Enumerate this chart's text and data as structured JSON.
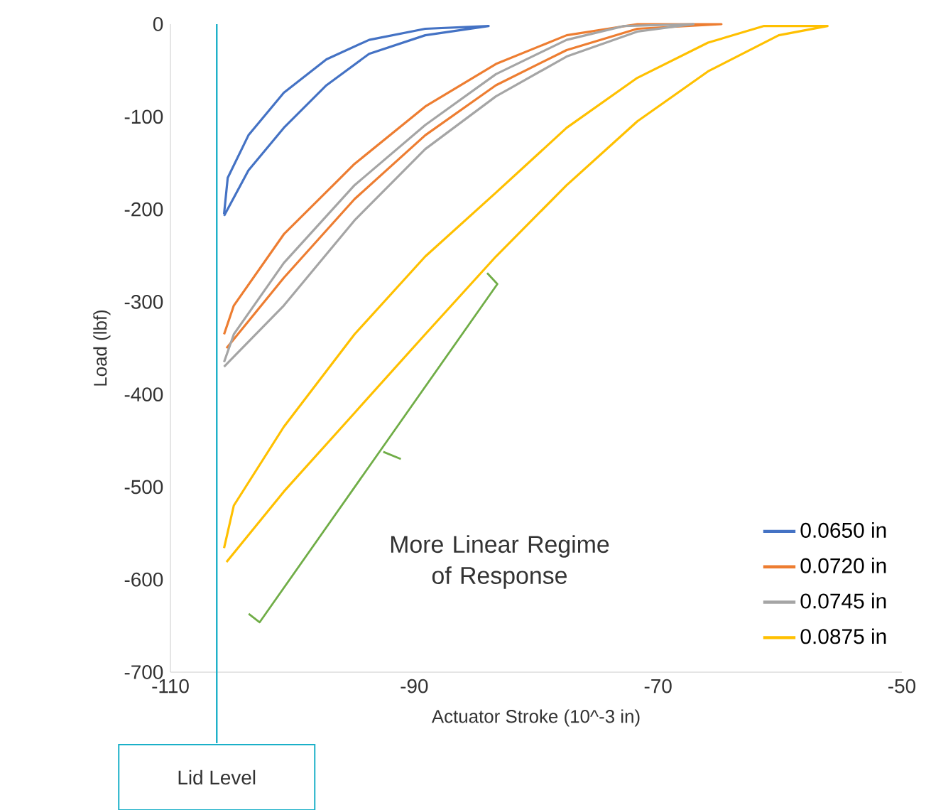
{
  "chart_data": {
    "type": "line",
    "xlabel": "Actuator Stroke (10^-3 in)",
    "ylabel": "Load (lbf)",
    "xlim": [
      -110,
      -50
    ],
    "xticks": [
      -110,
      -90,
      -70,
      -50
    ],
    "ylim": [
      -700,
      0
    ],
    "yticks": [
      -700,
      -600,
      -500,
      -400,
      -300,
      -200,
      -100,
      0
    ],
    "grid": false,
    "legend": "bottom right",
    "marker": "none",
    "line_style": "solid",
    "annotations": [
      "More Linear Regime of Response"
    ],
    "ref_lines": [
      {
        "axis": "x",
        "value": -106.2,
        "label": "Lid Level",
        "color": "#1ab0c8"
      }
    ],
    "series": [
      {
        "name": "0.0650 in",
        "color": "#4472c4",
        "x": [
          -105.6,
          -103.6,
          -100.7,
          -97.2,
          -93.7,
          -89.1,
          -83.9,
          -89.1,
          -93.7,
          -97.2,
          -100.7,
          -103.6,
          -105.3,
          -105.6
        ],
        "values": [
          -207,
          -158,
          -112,
          -66,
          -32,
          -12,
          -2,
          -5,
          -17,
          -38,
          -74,
          -120,
          -166,
          -205
        ]
      },
      {
        "name": "0.0720 in",
        "color": "#ed7d31",
        "x": [
          -105.4,
          -100.7,
          -94.9,
          -89.1,
          -83.3,
          -77.5,
          -71.7,
          -64.8,
          -71.7,
          -77.5,
          -83.3,
          -89.1,
          -94.9,
          -100.7,
          -104.8,
          -105.6
        ],
        "values": [
          -350,
          -274,
          -189,
          -120,
          -66,
          -28,
          -5,
          0,
          0,
          -12,
          -43,
          -89,
          -151,
          -227,
          -304,
          -335
        ]
      },
      {
        "name": "0.0745 in",
        "color": "#a5a5a5",
        "x": [
          -105.6,
          -100.7,
          -94.9,
          -89.1,
          -83.3,
          -77.5,
          -71.7,
          -67.1,
          -72.8,
          -77.5,
          -83.3,
          -89.1,
          -94.9,
          -100.7,
          -104.8,
          -105.6
        ],
        "values": [
          -370,
          -304,
          -212,
          -135,
          -78,
          -35,
          -8,
          0,
          -2,
          -17,
          -54,
          -109,
          -174,
          -258,
          -335,
          -365
        ]
      },
      {
        "name": "0.0875 in",
        "color": "#ffc000",
        "x": [
          -105.4,
          -100.7,
          -94.9,
          -89.1,
          -83.3,
          -77.5,
          -71.7,
          -65.9,
          -60.1,
          -56.1,
          -61.3,
          -65.9,
          -71.7,
          -77.5,
          -83.3,
          -89.1,
          -94.9,
          -100.7,
          -104.8,
          -105.6
        ],
        "values": [
          -581,
          -505,
          -420,
          -335,
          -251,
          -174,
          -105,
          -51,
          -12,
          -2,
          -2,
          -20,
          -58,
          -112,
          -182,
          -251,
          -335,
          -435,
          -520,
          -566
        ]
      }
    ]
  }
}
